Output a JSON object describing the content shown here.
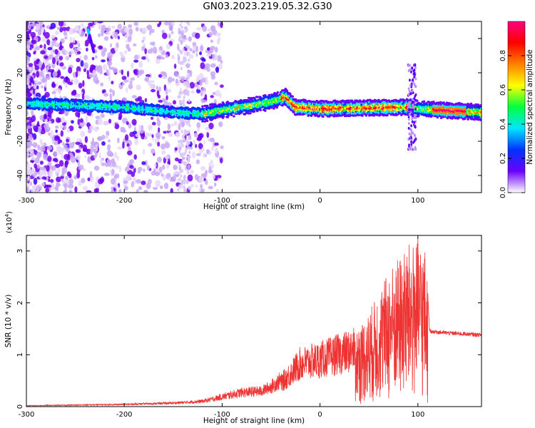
{
  "figure_title": "GN03.2023.219.05.32.G30",
  "chart_data": [
    {
      "type": "heatmap",
      "title": "GN03.2023.219.05.32.G30",
      "xlabel": "Height of straight line (km)",
      "ylabel": "Frequency (Hz)",
      "xlim": [
        -300,
        165
      ],
      "ylim": [
        -50,
        50
      ],
      "xticks": [
        -300,
        -200,
        -100,
        0,
        100
      ],
      "yticks": [
        -40,
        -20,
        0,
        20,
        40
      ],
      "colorbar": {
        "label": "Normalized spectral amplitude",
        "range": [
          0,
          1
        ],
        "ticks": [
          0.0,
          0.2,
          0.4,
          0.6,
          0.8
        ],
        "tick_labels": [
          "0.0",
          "0.2",
          "0.4",
          "0.6",
          "0.8"
        ],
        "colormap": [
          "#ffffff",
          "#6a00ff",
          "#0033ff",
          "#00e6ff",
          "#00ff40",
          "#ffff00",
          "#ff8000",
          "#ff0000",
          "#ff0080"
        ]
      },
      "ridge": {
        "description_points_x": [
          -300,
          -250,
          -200,
          -150,
          -120,
          -80,
          -50,
          -35,
          -25,
          0,
          50,
          90,
          100,
          130,
          165
        ],
        "frequency_hz": [
          2,
          1,
          0,
          -3,
          -4,
          0,
          3,
          6,
          0,
          -1,
          -0.5,
          0,
          -1,
          -2,
          -3
        ]
      }
    },
    {
      "type": "line",
      "xlabel": "Height of straight line (km)",
      "ylabel": "SNR (10 * v/v)",
      "y_multiplier": "(x10",
      "y_multiplier_exp": "4",
      "xlim": [
        -300,
        165
      ],
      "ylim": [
        0,
        3.3
      ],
      "xticks": [
        -300,
        -200,
        -100,
        0,
        100
      ],
      "yticks": [
        0,
        1,
        2,
        3
      ],
      "series": [
        {
          "color": "#ee3333",
          "envelope_x": [
            -300,
            -200,
            -150,
            -120,
            -100,
            -80,
            -60,
            -50,
            -40,
            -30,
            -20,
            0,
            20,
            35,
            50,
            70,
            90,
            100,
            108,
            112,
            130,
            165
          ],
          "envelope_y": [
            0.02,
            0.05,
            0.08,
            0.12,
            0.22,
            0.32,
            0.35,
            0.45,
            0.6,
            0.85,
            1.1,
            1.2,
            1.35,
            1.45,
            1.8,
            2.6,
            3.1,
            3.2,
            3.0,
            1.45,
            1.42,
            1.38
          ]
        }
      ]
    }
  ]
}
